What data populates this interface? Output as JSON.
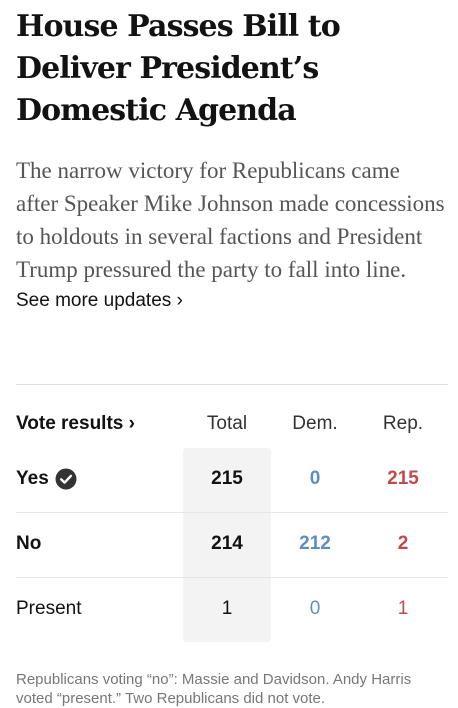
{
  "article": {
    "headline": "House Passes Bill to Deliver President’s Domestic Agenda",
    "summary": "The narrow victory for Republicans came after Speaker Mike Johnson made concessions to holdouts in several factions and President Trump pressured the party to fall into line.",
    "see_more": "See more updates ›"
  },
  "vote_table": {
    "title": "Vote results ›",
    "columns": [
      "Total",
      "Dem.",
      "Rep."
    ],
    "rows": [
      {
        "label": "Yes",
        "total": "215",
        "dem": "0",
        "rep": "215",
        "icon": "check-circle-icon"
      },
      {
        "label": "No",
        "total": "214",
        "dem": "212",
        "rep": "2"
      },
      {
        "label": "Present",
        "total": "1",
        "dem": "0",
        "rep": "1"
      }
    ],
    "colors": {
      "dem": "#5d8fbe",
      "rep": "#bf4b4b",
      "total_bg": "#f3f3f3"
    }
  },
  "footnote": "Republicans voting “no”: Massie and Davidson. Andy Harris voted “present.” Two Republicans did not vote."
}
